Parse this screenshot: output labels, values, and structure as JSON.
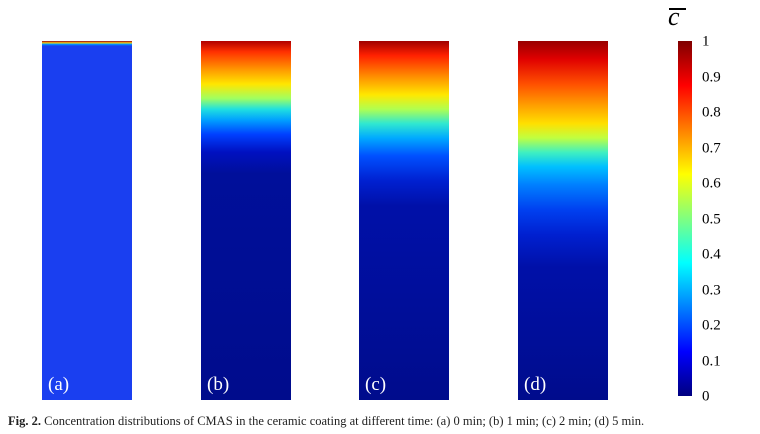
{
  "panels": [
    {
      "id": "a",
      "label": "(a)"
    },
    {
      "id": "b",
      "label": "(b)"
    },
    {
      "id": "c",
      "label": "(c)"
    },
    {
      "id": "d",
      "label": "(d)"
    }
  ],
  "colorbar": {
    "symbol": "c",
    "ticks": [
      "1",
      "0.9",
      "0.8",
      "0.7",
      "0.6",
      "0.5",
      "0.4",
      "0.3",
      "0.2",
      "0.1",
      "0"
    ],
    "colormap": "jet",
    "min": 0,
    "max": 1
  },
  "caption": {
    "label": "Fig. 2.",
    "text": "Concentration distributions of CMAS in the ceramic coating at different time: (a) 0 min; (b) 1 min; (c) 2 min; (d) 5 min."
  }
}
